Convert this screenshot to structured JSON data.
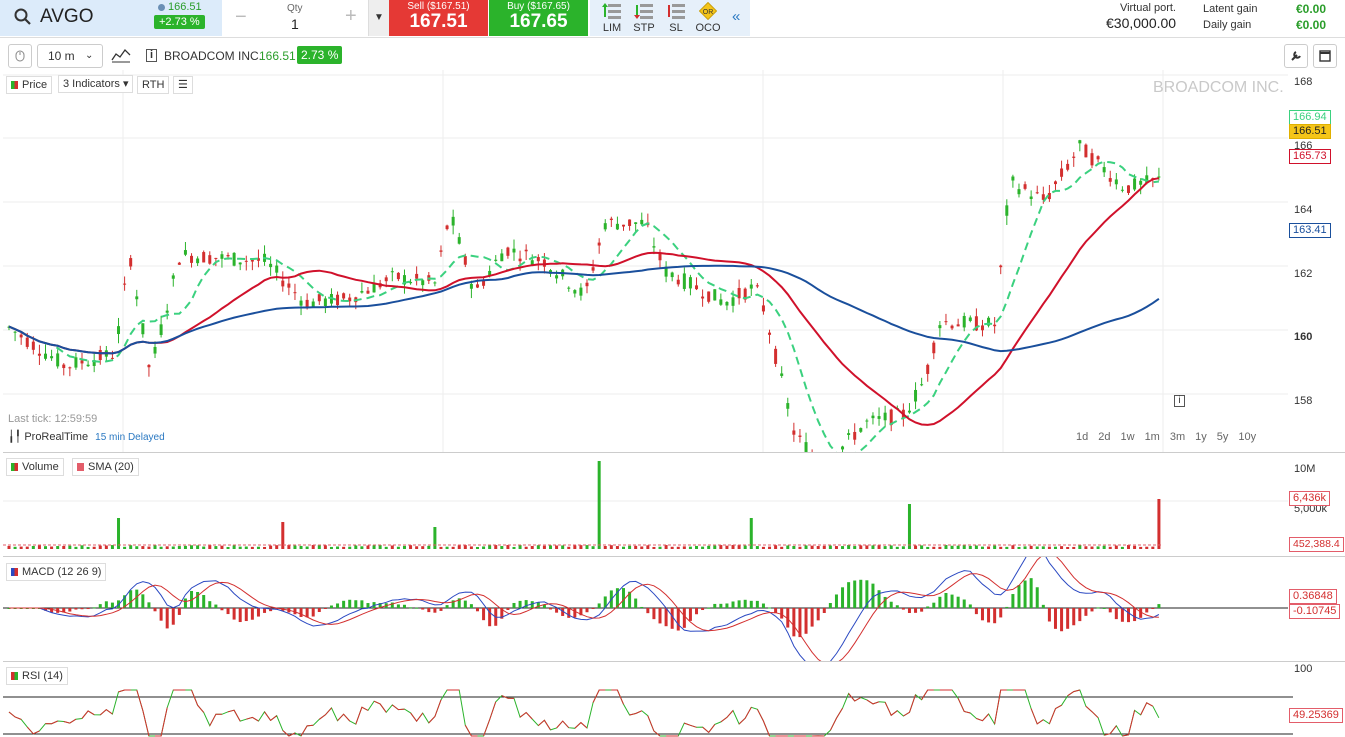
{
  "header": {
    "symbol": "AVGO",
    "last_price": "166.51",
    "change_pct": "+2.73 %",
    "qty_label": "Qty",
    "qty_value": "1",
    "sell_label": "Sell ($167.51)",
    "sell_price": "167.51",
    "buy_label": "Buy ($167.65)",
    "buy_price": "167.65",
    "order_types": [
      "LIM",
      "STP",
      "SL",
      "OCO"
    ],
    "collapse_glyph": "«",
    "portfolio_label": "Virtual port.",
    "portfolio_value": "€30,000.00",
    "latent_gain_label": "Latent gain",
    "latent_gain_value": "€0.00",
    "daily_gain_label": "Daily gain",
    "daily_gain_value": "€0.00"
  },
  "chart_toolbar": {
    "interval": "10 m",
    "instrument_name": "BROADCOM INC.",
    "instrument_price": "166.51",
    "instrument_change": "2.73 %",
    "price_tag": "Price",
    "indicators_tag": "3 Indicators",
    "rth_tag": "RTH"
  },
  "price_pane": {
    "watermark": "BROADCOM INC.",
    "last_tick": "Last tick: 12:59:59",
    "provider": "ProRealTime",
    "delay": "15 min Delayed",
    "y_ticks": [
      "168",
      "166",
      "164",
      "162",
      "160",
      "158"
    ],
    "price_boxes": {
      "ema_fast": "166.94",
      "last": "166.51",
      "sma_mid": "165.73",
      "sma_long": "163.41"
    },
    "ranges": [
      "1d",
      "2d",
      "1w",
      "1m",
      "3m",
      "1y",
      "5y",
      "10y"
    ]
  },
  "volume_pane": {
    "label": "Volume",
    "sma_label": "SMA (20)",
    "y_ticks": [
      "10M",
      "5,000k"
    ],
    "boxes": {
      "last": "6,436k",
      "sma": "452,388.4"
    }
  },
  "macd_pane": {
    "label": "MACD (12 26 9)",
    "boxes": {
      "macd": "0.36848",
      "signal": "-0.10745"
    }
  },
  "rsi_pane": {
    "label": "RSI (14)",
    "y_ticks": [
      "100"
    ],
    "boxes": {
      "rsi": "49.25369"
    }
  },
  "colors": {
    "up": "#2bb32b",
    "down": "#d32f2f",
    "sma_long": "#1a4f9c",
    "sma_mid": "#d0112b",
    "ema_fast": "#3bd17f",
    "accent": "#2b79c2"
  }
}
